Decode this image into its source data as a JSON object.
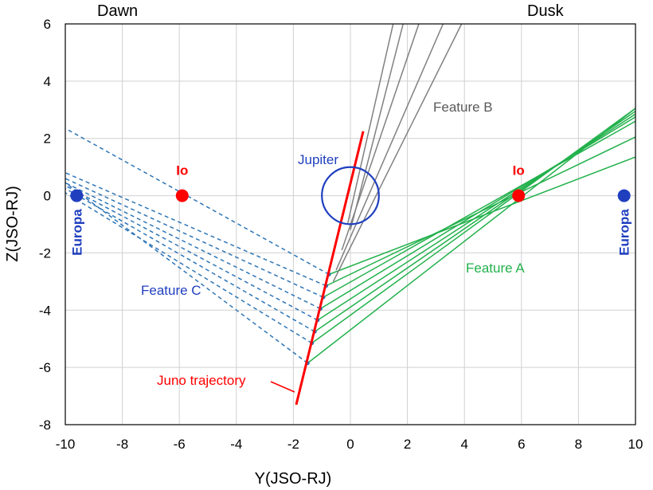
{
  "chart_data": {
    "type": "line",
    "xlabel": "Y(JSO-RJ)",
    "ylabel": "Z(JSO-RJ)",
    "xlim": [
      -10,
      10
    ],
    "ylim": [
      -8,
      6
    ],
    "x_ticks": [
      -10,
      -8,
      -6,
      -4,
      -2,
      0,
      2,
      4,
      6,
      8,
      10
    ],
    "y_ticks": [
      -8,
      -6,
      -4,
      -2,
      0,
      2,
      4,
      6
    ],
    "grid": true,
    "corner_labels": {
      "left": "Dawn",
      "right": "Dusk"
    },
    "jupiter": {
      "label": "Jupiter",
      "center": [
        0,
        0
      ],
      "radius": 1,
      "color": "#1f3fbf"
    },
    "moons": [
      {
        "name": "Io",
        "x": -5.9,
        "y": 0,
        "color": "#ff0000",
        "label_orientation": "horizontal"
      },
      {
        "name": "Io",
        "x": 5.9,
        "y": 0,
        "color": "#ff0000",
        "label_orientation": "horizontal"
      },
      {
        "name": "Europa",
        "x": -9.6,
        "y": 0,
        "color": "#1f3fbf",
        "label_orientation": "vertical"
      },
      {
        "name": "Europa",
        "x": 9.6,
        "y": 0,
        "color": "#1f3fbf",
        "label_orientation": "vertical"
      }
    ],
    "series": [
      {
        "name": "Juno trajectory",
        "color": "#ff0000",
        "style": "solid",
        "points": [
          [
            -1.9,
            -7.3
          ],
          [
            0.45,
            2.25
          ]
        ]
      },
      {
        "name": "Feature A",
        "color": "#22b14c",
        "style": "solid",
        "lines": [
          [
            [
              -0.75,
              -2.75
            ],
            [
              10,
              1.35
            ]
          ],
          [
            [
              -0.85,
              -3.15
            ],
            [
              10,
              2.05
            ]
          ],
          [
            [
              -0.95,
              -3.55
            ],
            [
              10,
              2.6
            ]
          ],
          [
            [
              -1.05,
              -3.95
            ],
            [
              10,
              2.75
            ]
          ],
          [
            [
              -1.15,
              -4.35
            ],
            [
              10,
              2.85
            ]
          ],
          [
            [
              -1.25,
              -4.75
            ],
            [
              10,
              2.95
            ]
          ],
          [
            [
              -1.35,
              -5.15
            ],
            [
              10,
              3.05
            ]
          ],
          [
            [
              -1.5,
              -5.85
            ],
            [
              10,
              3.05
            ]
          ]
        ]
      },
      {
        "name": "Feature B",
        "color": "#808080",
        "style": "solid",
        "lines": [
          [
            [
              -0.1,
              -1.0
            ],
            [
              1.5,
              6
            ]
          ],
          [
            [
              0.0,
              -1.2
            ],
            [
              1.85,
              6
            ]
          ],
          [
            [
              -0.3,
              -1.9
            ],
            [
              2.4,
              6
            ]
          ],
          [
            [
              -0.5,
              -2.6
            ],
            [
              3.25,
              6
            ]
          ],
          [
            [
              -0.6,
              -3.0
            ],
            [
              3.9,
              6
            ]
          ]
        ]
      },
      {
        "name": "Feature C",
        "color": "#2e75b6",
        "style": "dashed",
        "lines": [
          [
            [
              -0.75,
              -2.75
            ],
            [
              -10,
              2.35
            ]
          ],
          [
            [
              -0.85,
              -3.15
            ],
            [
              -10,
              0.8
            ]
          ],
          [
            [
              -0.95,
              -3.55
            ],
            [
              -10,
              0.6
            ]
          ],
          [
            [
              -1.05,
              -3.95
            ],
            [
              -10,
              0.45
            ]
          ],
          [
            [
              -1.15,
              -4.35
            ],
            [
              -10,
              0.35
            ]
          ],
          [
            [
              -1.25,
              -4.75
            ],
            [
              -10,
              0.25
            ]
          ],
          [
            [
              -1.35,
              -5.15
            ],
            [
              -10,
              0.1
            ]
          ],
          [
            [
              -1.5,
              -5.85
            ],
            [
              -10,
              0.45
            ]
          ]
        ]
      }
    ],
    "annotations": [
      {
        "text": "Jupiter",
        "color": "#1f3fbf"
      },
      {
        "text": "Feature A",
        "color": "#22b14c"
      },
      {
        "text": "Feature B",
        "color": "#595959"
      },
      {
        "text": "Feature C",
        "color": "#1f3fbf"
      },
      {
        "text": "Juno trajectory",
        "color": "#ff0000"
      }
    ]
  }
}
